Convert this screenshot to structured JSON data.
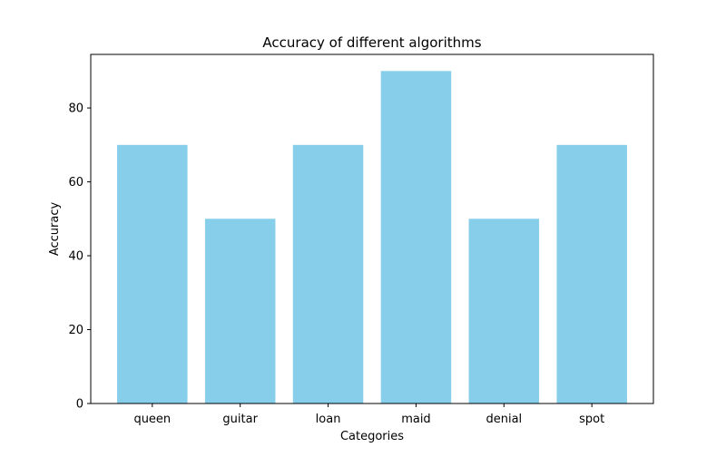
{
  "chart_data": {
    "type": "bar",
    "title": "Accuracy of different algorithms",
    "xlabel": "Categories",
    "ylabel": "Accuracy",
    "categories": [
      "queen",
      "guitar",
      "loan",
      "maid",
      "denial",
      "spot"
    ],
    "values": [
      70,
      50,
      70,
      90,
      50,
      70
    ],
    "yticks": [
      0,
      20,
      40,
      60,
      80
    ],
    "ylim": [
      0,
      94.5
    ],
    "bar_color": "#87CEEB",
    "grid": false,
    "legend": "none"
  }
}
